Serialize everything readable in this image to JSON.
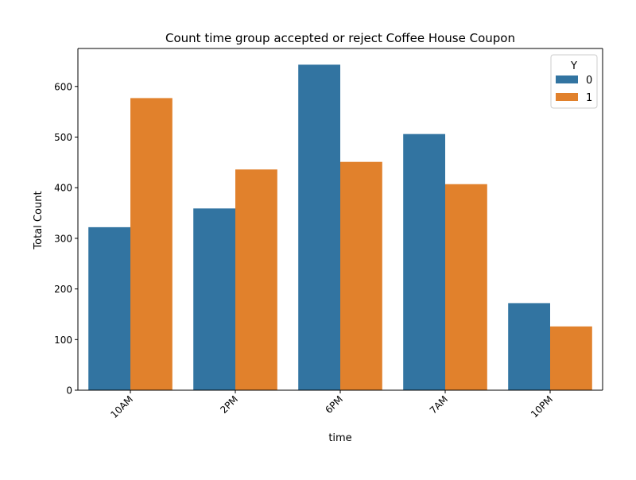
{
  "colors": {
    "series_0": "#3274a1",
    "series_1": "#e1812c",
    "axis": "#000000",
    "background": "#ffffff"
  },
  "chart_data": {
    "type": "bar",
    "title": "Count time group accepted or reject Coffee House Coupon",
    "xlabel": "time",
    "ylabel": "Total Count",
    "categories": [
      "10AM",
      "2PM",
      "6PM",
      "7AM",
      "10PM"
    ],
    "series": [
      {
        "name": "0",
        "values": [
          322,
          359,
          643,
          506,
          172
        ]
      },
      {
        "name": "1",
        "values": [
          577,
          436,
          451,
          407,
          126
        ]
      }
    ],
    "ylim": [
      0,
      675
    ],
    "yticks": [
      0,
      100,
      200,
      300,
      400,
      500,
      600
    ],
    "x_tick_rotation": 45,
    "grid": false,
    "legend": {
      "title": "Y",
      "placement": "top-right",
      "entries": [
        "0",
        "1"
      ]
    }
  }
}
